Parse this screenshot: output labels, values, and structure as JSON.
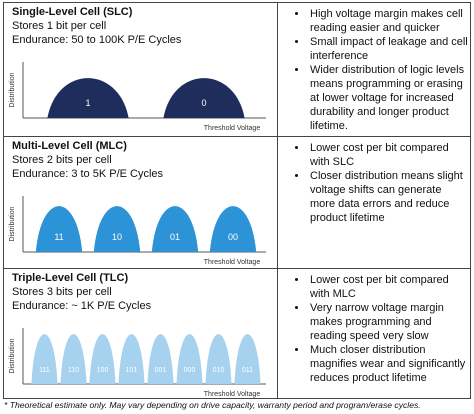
{
  "rows": [
    {
      "title": "Single-Level Cell (SLC)",
      "lines": [
        "Stores 1 bit per cell",
        "Endurance: 50 to 100K P/E Cycles"
      ],
      "y_axis_label": "Distribution",
      "x_axis_label": "Threshold Voltage",
      "states": [
        "1",
        "0"
      ],
      "color": "#1f2d5c",
      "bullets": [
        "High voltage margin makes cell reading easier and quicker",
        "Small impact of leakage and cell interference",
        "Wider distribution of logic levels means programming or erasing at lower voltage for increased durability and longer product lifetime."
      ]
    },
    {
      "title": "Multi-Level Cell (MLC)",
      "lines": [
        "Stores 2 bits per cell",
        "Endurance: 3 to 5K P/E Cycles"
      ],
      "y_axis_label": "Distribution",
      "x_axis_label": "Threshold Voltage",
      "states": [
        "11",
        "10",
        "01",
        "00"
      ],
      "color": "#2b93d6",
      "bullets": [
        "Lower cost per bit compared with SLC",
        "Closer distribution means slight voltage shifts can generate more data errors and reduce product lifetime"
      ]
    },
    {
      "title": "Triple-Level Cell (TLC)",
      "lines": [
        "Stores 3 bits per cell",
        "Endurance: ~ 1K P/E Cycles"
      ],
      "y_axis_label": "Distribution",
      "x_axis_label": "Threshold Voltage",
      "states": [
        "111",
        "110",
        "100",
        "101",
        "001",
        "000",
        "010",
        "011"
      ],
      "color": "#a6d1ef",
      "bullets": [
        "Lower cost per bit compared with MLC",
        "Very narrow voltage margin makes programming and reading speed very slow",
        "Much closer distribution magnifies wear and significantly reduces product lifetime"
      ]
    }
  ],
  "footnote": "* Theoretical estimate only. May vary depending on drive capacity, warranty period and program/erase cycles."
}
